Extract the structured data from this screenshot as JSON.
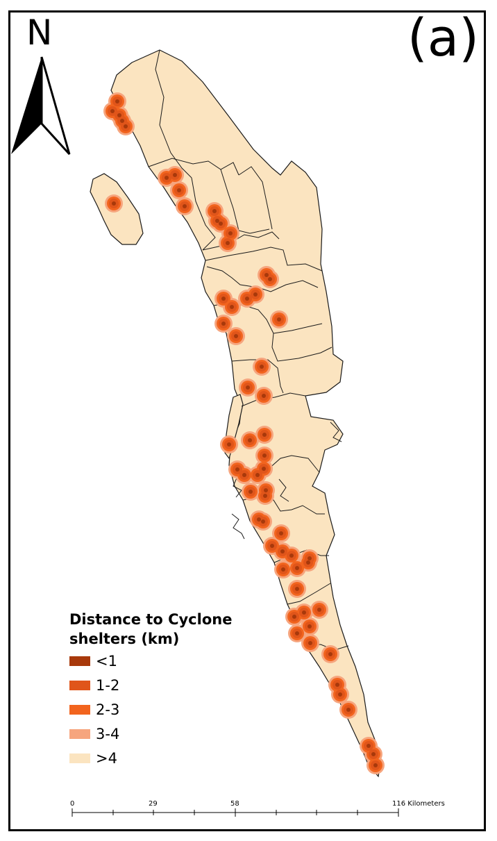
{
  "panel_label": "(a)",
  "north_arrow": {
    "letter": "N"
  },
  "legend": {
    "title_line1": "Distance to Cyclone",
    "title_line2": "shelters (km)",
    "classes": [
      {
        "label": "<1",
        "color": "#a8390b"
      },
      {
        "label": "1-2",
        "color": "#e0551a"
      },
      {
        "label": "2-3",
        "color": "#f2641e"
      },
      {
        "label": "3-4",
        "color": "#f6a57e"
      },
      {
        "label": ">4",
        "color": "#fbe4c0"
      }
    ]
  },
  "scale_bar": {
    "ticks": [
      "0",
      "29",
      "58",
      "116 Kilometers"
    ]
  },
  "colors": {
    "land": "#fbe4c0",
    "boundary": "#1a1a1a",
    "shelter_core": "#a8390b",
    "ring_1_2": "#e0551a",
    "ring_2_3": "#f2641e",
    "ring_3_4": "#f6a57e"
  }
}
